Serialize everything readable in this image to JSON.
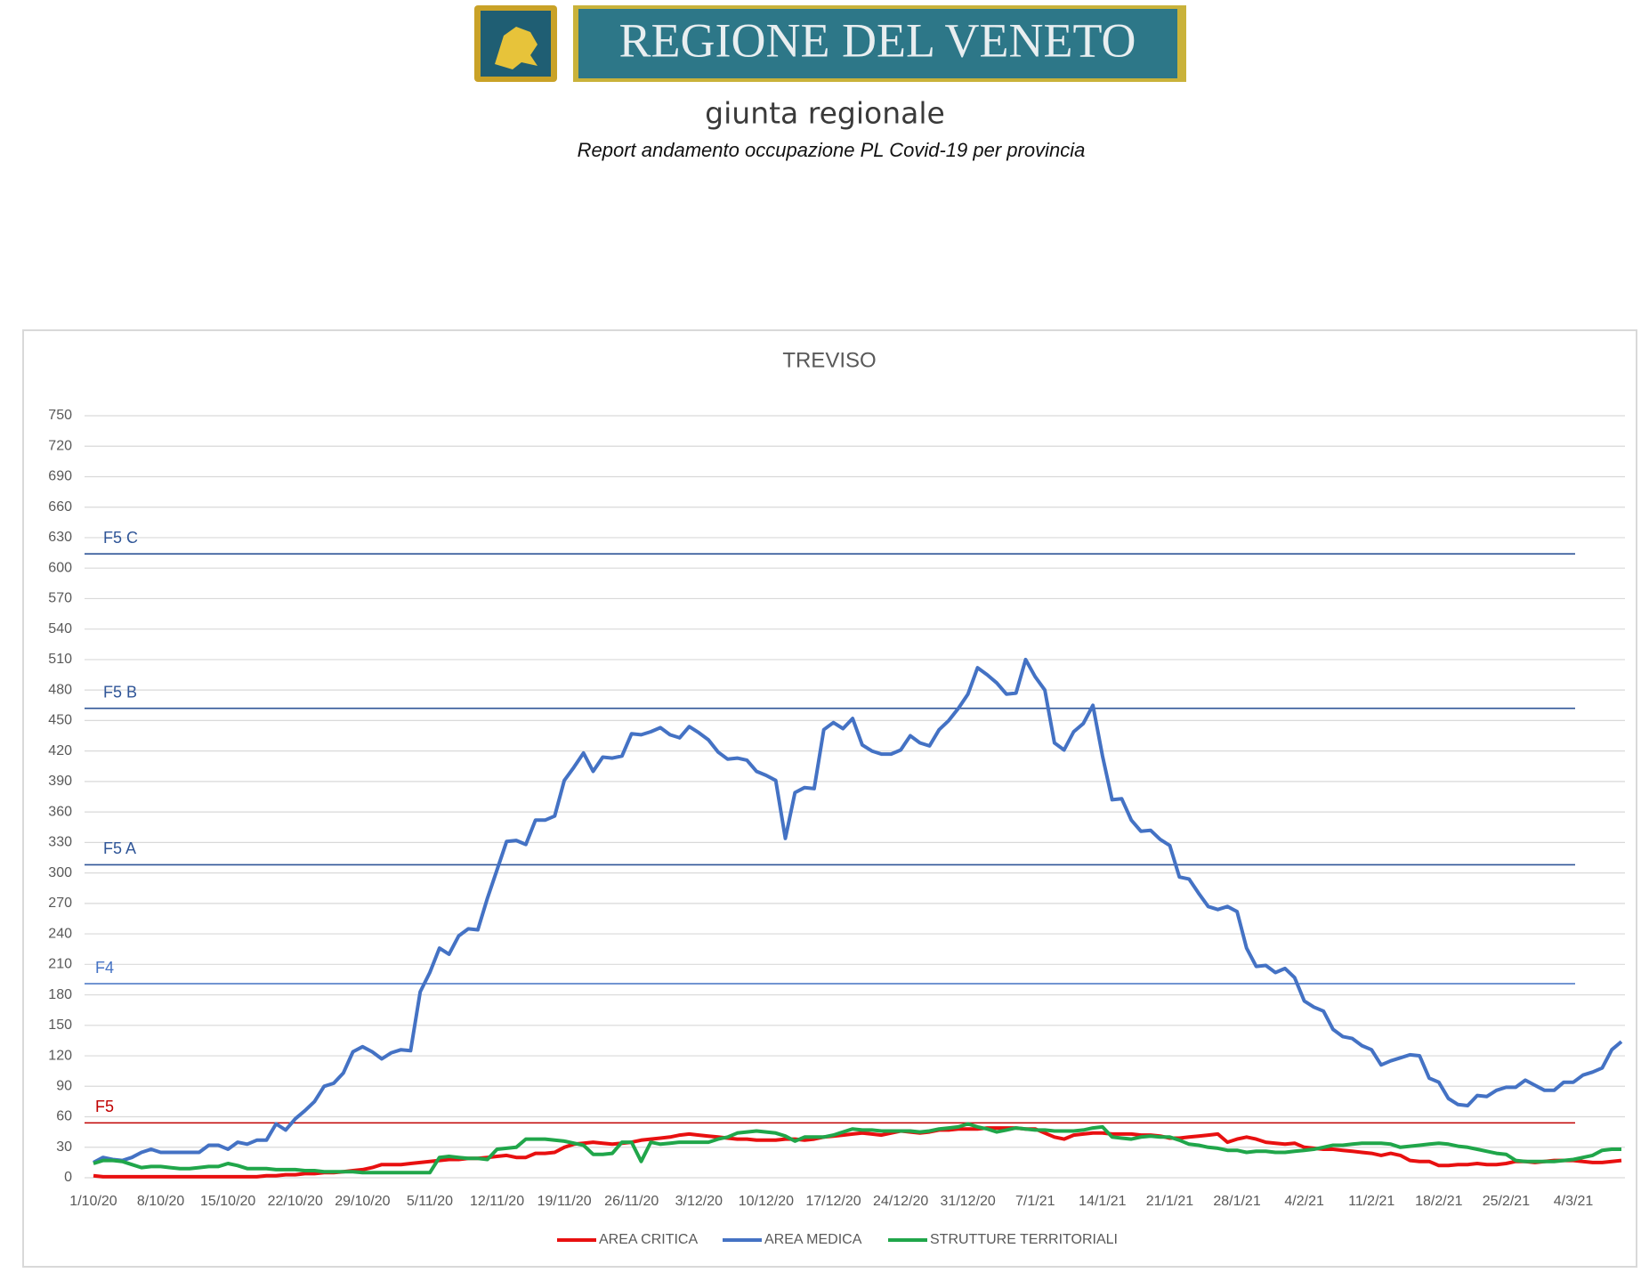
{
  "header": {
    "banner": "REGIONE DEL VENETO",
    "subtitle": "giunta regionale",
    "report_title": "Report andamento occupazione PL Covid-19 per provincia"
  },
  "chart_data": {
    "type": "line",
    "title": "TREVISO",
    "categories": [
      "1/10/20",
      null,
      null,
      null,
      null,
      null,
      null,
      "8/10/20",
      null,
      null,
      null,
      null,
      null,
      null,
      "15/10/20",
      null,
      null,
      null,
      null,
      null,
      null,
      "22/10/20",
      null,
      null,
      null,
      null,
      null,
      null,
      "29/10/20",
      null,
      null,
      null,
      null,
      null,
      null,
      "5/11/20",
      null,
      null,
      null,
      null,
      null,
      null,
      "12/11/20",
      null,
      null,
      null,
      null,
      null,
      null,
      "19/11/20",
      null,
      null,
      null,
      null,
      null,
      null,
      "26/11/20",
      null,
      null,
      null,
      null,
      null,
      null,
      "3/12/20",
      null,
      null,
      null,
      null,
      null,
      null,
      "10/12/20",
      null,
      null,
      null,
      null,
      null,
      null,
      "17/12/20",
      null,
      null,
      null,
      null,
      null,
      null,
      "24/12/20",
      null,
      null,
      null,
      null,
      null,
      null,
      "31/12/20",
      null,
      null,
      null,
      null,
      null,
      null,
      "7/1/21",
      null,
      null,
      null,
      null,
      null,
      null,
      "14/1/21",
      null,
      null,
      null,
      null,
      null,
      null,
      "21/1/21",
      null,
      null,
      null,
      null,
      null,
      null,
      "28/1/21",
      null,
      null,
      null,
      null,
      null,
      null,
      "4/2/21",
      null,
      null,
      null,
      null,
      null,
      null,
      "11/2/21",
      null,
      null,
      null,
      null,
      null,
      null,
      "18/2/21",
      null,
      null,
      null,
      null,
      null,
      null,
      "25/2/21",
      null,
      null,
      null,
      null,
      null,
      null,
      "4/3/21",
      null,
      null,
      null,
      null,
      null
    ],
    "series": [
      {
        "name": "AREA CRITICA",
        "color": "#e81010",
        "values": [
          2,
          1,
          1,
          1,
          1,
          1,
          1,
          1,
          1,
          1,
          1,
          1,
          1,
          1,
          1,
          1,
          1,
          1,
          2,
          2,
          3,
          3,
          4,
          4,
          5,
          5,
          6,
          7,
          8,
          10,
          13,
          13,
          13,
          14,
          15,
          16,
          17,
          18,
          18,
          19,
          19,
          20,
          21,
          22,
          20,
          20,
          24,
          24,
          25,
          30,
          33,
          34,
          35,
          34,
          33,
          34,
          35,
          37,
          38,
          39,
          40,
          42,
          43,
          42,
          41,
          40,
          39,
          38,
          38,
          37,
          37,
          37,
          38,
          38,
          37,
          38,
          40,
          41,
          42,
          43,
          44,
          43,
          42,
          44,
          46,
          45,
          44,
          45,
          47,
          47,
          48,
          48,
          48,
          49,
          49,
          49,
          49,
          48,
          48,
          44,
          40,
          38,
          42,
          43,
          44,
          44,
          43,
          43,
          43,
          42,
          42,
          41,
          39,
          39,
          40,
          41,
          42,
          43,
          35,
          38,
          40,
          38,
          35,
          34,
          33,
          34,
          30,
          29,
          28,
          28,
          27,
          26,
          25,
          24,
          22,
          24,
          22,
          17,
          16,
          16,
          12,
          12,
          13,
          13,
          14,
          13,
          13,
          14,
          16,
          16,
          15,
          16,
          17,
          17,
          17,
          16,
          15,
          15,
          16,
          17
        ]
      },
      {
        "name": "AREA MEDICA",
        "color": "#4472c4",
        "values": [
          15,
          20,
          18,
          17,
          20,
          25,
          28,
          25,
          25,
          25,
          25,
          25,
          32,
          32,
          28,
          35,
          33,
          37,
          37,
          53,
          47,
          58,
          66,
          75,
          90,
          93,
          103,
          124,
          129,
          124,
          117,
          123,
          126,
          125,
          183,
          202,
          226,
          220,
          238,
          245,
          244,
          275,
          303,
          331,
          332,
          328,
          352,
          352,
          356,
          391,
          404,
          418,
          400,
          414,
          413,
          415,
          437,
          436,
          439,
          443,
          436,
          433,
          444,
          438,
          431,
          419,
          412,
          413,
          411,
          400,
          396,
          391,
          334,
          379,
          384,
          383,
          441,
          448,
          442,
          452,
          426,
          420,
          417,
          417,
          421,
          435,
          428,
          425,
          441,
          450,
          462,
          476,
          502,
          495,
          487,
          476,
          477,
          510,
          493,
          480,
          428,
          421,
          439,
          447,
          465,
          415,
          372,
          373,
          352,
          341,
          342,
          333,
          327,
          296,
          294,
          280,
          267,
          264,
          267,
          262,
          226,
          208,
          209,
          202,
          206,
          197,
          174,
          168,
          164,
          146,
          139,
          137,
          130,
          126,
          111,
          115,
          118,
          121,
          120,
          98,
          94,
          78,
          72,
          71,
          81,
          80,
          86,
          89,
          89,
          96,
          91,
          86,
          86,
          94,
          94,
          101,
          104,
          108,
          126,
          134
        ]
      },
      {
        "name": "STRUTTURE TERRITORIALI",
        "color": "#20a64a",
        "values": [
          14,
          17,
          17,
          16,
          13,
          10,
          11,
          11,
          10,
          9,
          9,
          10,
          11,
          11,
          14,
          12,
          9,
          9,
          9,
          8,
          8,
          8,
          7,
          7,
          6,
          6,
          6,
          6,
          5,
          5,
          5,
          5,
          5,
          5,
          5,
          5,
          20,
          21,
          20,
          19,
          19,
          18,
          28,
          29,
          30,
          38,
          38,
          38,
          37,
          36,
          34,
          32,
          23,
          23,
          24,
          35,
          35,
          16,
          35,
          33,
          34,
          35,
          35,
          35,
          35,
          38,
          40,
          44,
          45,
          46,
          45,
          44,
          41,
          36,
          40,
          40,
          40,
          42,
          45,
          48,
          47,
          47,
          46,
          46,
          46,
          46,
          45,
          46,
          48,
          49,
          50,
          53,
          50,
          48,
          45,
          47,
          49,
          48,
          47,
          47,
          46,
          46,
          46,
          47,
          49,
          50,
          40,
          39,
          38,
          40,
          41,
          40,
          40,
          37,
          33,
          32,
          30,
          29,
          27,
          27,
          25,
          26,
          26,
          25,
          25,
          26,
          27,
          28,
          30,
          32,
          32,
          33,
          34,
          34,
          34,
          33,
          30,
          31,
          32,
          33,
          34,
          33,
          31,
          30,
          28,
          26,
          24,
          23,
          17,
          16,
          16,
          16,
          16,
          17,
          18,
          20,
          22,
          27,
          28,
          28
        ]
      }
    ],
    "reference_lines": [
      {
        "label": "F5 C",
        "value": 614,
        "color": "#2f5597"
      },
      {
        "label": "F5 B",
        "value": 462,
        "color": "#2f5597"
      },
      {
        "label": "F5 A",
        "value": 308,
        "color": "#2f5597"
      },
      {
        "label": "F4",
        "value": 191,
        "color": "#4472c4"
      },
      {
        "label": "F5",
        "value": 54,
        "color": "#c00000"
      }
    ],
    "ylim": [
      0,
      750
    ],
    "yticks": [
      0,
      30,
      60,
      90,
      120,
      150,
      180,
      210,
      240,
      270,
      300,
      330,
      360,
      390,
      420,
      450,
      480,
      510,
      540,
      570,
      600,
      630,
      660,
      690,
      720,
      750
    ],
    "grid": true,
    "legend": "bottom"
  }
}
